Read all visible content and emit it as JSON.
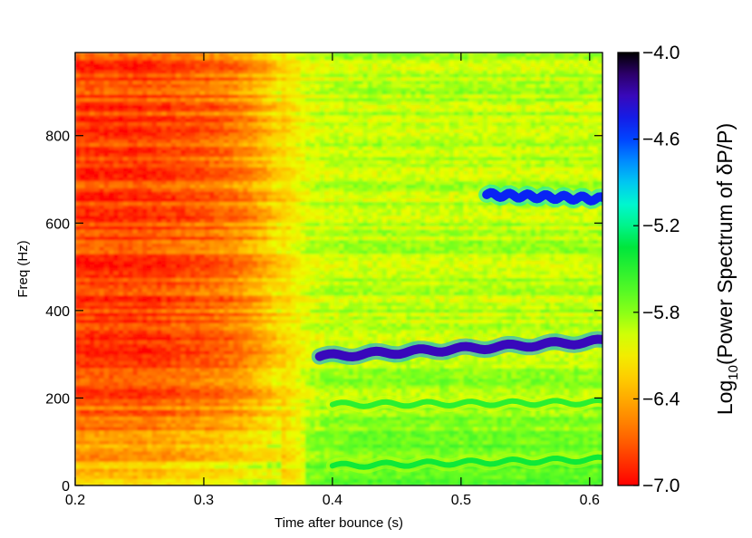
{
  "chart_data": {
    "type": "heatmap",
    "title": "",
    "xlabel": "Time after bounce (s)",
    "ylabel": "Freq (Hz)",
    "xlim": [
      0.2,
      0.61
    ],
    "ylim": [
      0,
      990
    ],
    "x_ticks": [
      0.2,
      0.3,
      0.4,
      0.5,
      0.6
    ],
    "x_tick_labels": [
      "0.2",
      "0.3",
      "0.4",
      "0.5",
      "0.6"
    ],
    "y_ticks": [
      0,
      200,
      400,
      600,
      800
    ],
    "y_tick_labels": [
      "0",
      "200",
      "400",
      "600",
      "800"
    ],
    "colorbar": {
      "title_prefix": "Log",
      "title_sub": "10",
      "title_suffix": "(Power Spectrum of δP/P)",
      "range": [
        -7.0,
        -4.0
      ],
      "ticks": [
        -7.0,
        -6.4,
        -5.8,
        -5.2,
        -4.6,
        -4.0
      ],
      "tick_labels": [
        "−7.0",
        "−6.4",
        "−5.8",
        "−5.2",
        "−4.6",
        "−4.0"
      ],
      "colormap": "rainbow (red → yellow → green → cyan → blue → black)",
      "placement": "right"
    },
    "features": [
      {
        "t_start": 0.39,
        "t_end": 0.61,
        "freq_start": 295,
        "freq_end": 330,
        "level": -4.3
      },
      {
        "t_start": 0.52,
        "t_end": 0.61,
        "freq_start": 665,
        "freq_end": 655,
        "level": -4.5
      },
      {
        "t_start": 0.4,
        "t_end": 0.61,
        "freq_start": 45,
        "freq_end": 60,
        "level": -5.4
      },
      {
        "t_start": 0.4,
        "t_end": 0.61,
        "freq_start": 185,
        "freq_end": 190,
        "level": -5.5
      }
    ],
    "background": {
      "early_level": -6.8,
      "late_level": -5.9,
      "transition_time": 0.355
    },
    "grid": false
  }
}
